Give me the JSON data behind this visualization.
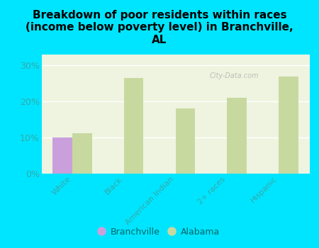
{
  "title": "Breakdown of poor residents within races\n(income below poverty level) in Branchville,\nAL",
  "categories": [
    "White",
    "Black",
    "American Indian",
    "2+ races",
    "Hispanic"
  ],
  "branchville_values": [
    10.0,
    0,
    0,
    0,
    0
  ],
  "alabama_values": [
    11.2,
    26.5,
    18.0,
    21.0,
    27.0
  ],
  "branchville_color": "#c9a0dc",
  "alabama_color": "#c8d9a0",
  "background_color": "#00e5ff",
  "plot_bg_color": "#eef4e0",
  "yticks": [
    0,
    10,
    20,
    30
  ],
  "ylim": [
    0,
    33
  ],
  "legend_labels": [
    "Branchville",
    "Alabama"
  ],
  "bar_width": 0.38,
  "title_fontsize": 11,
  "watermark": "City-Data.com"
}
